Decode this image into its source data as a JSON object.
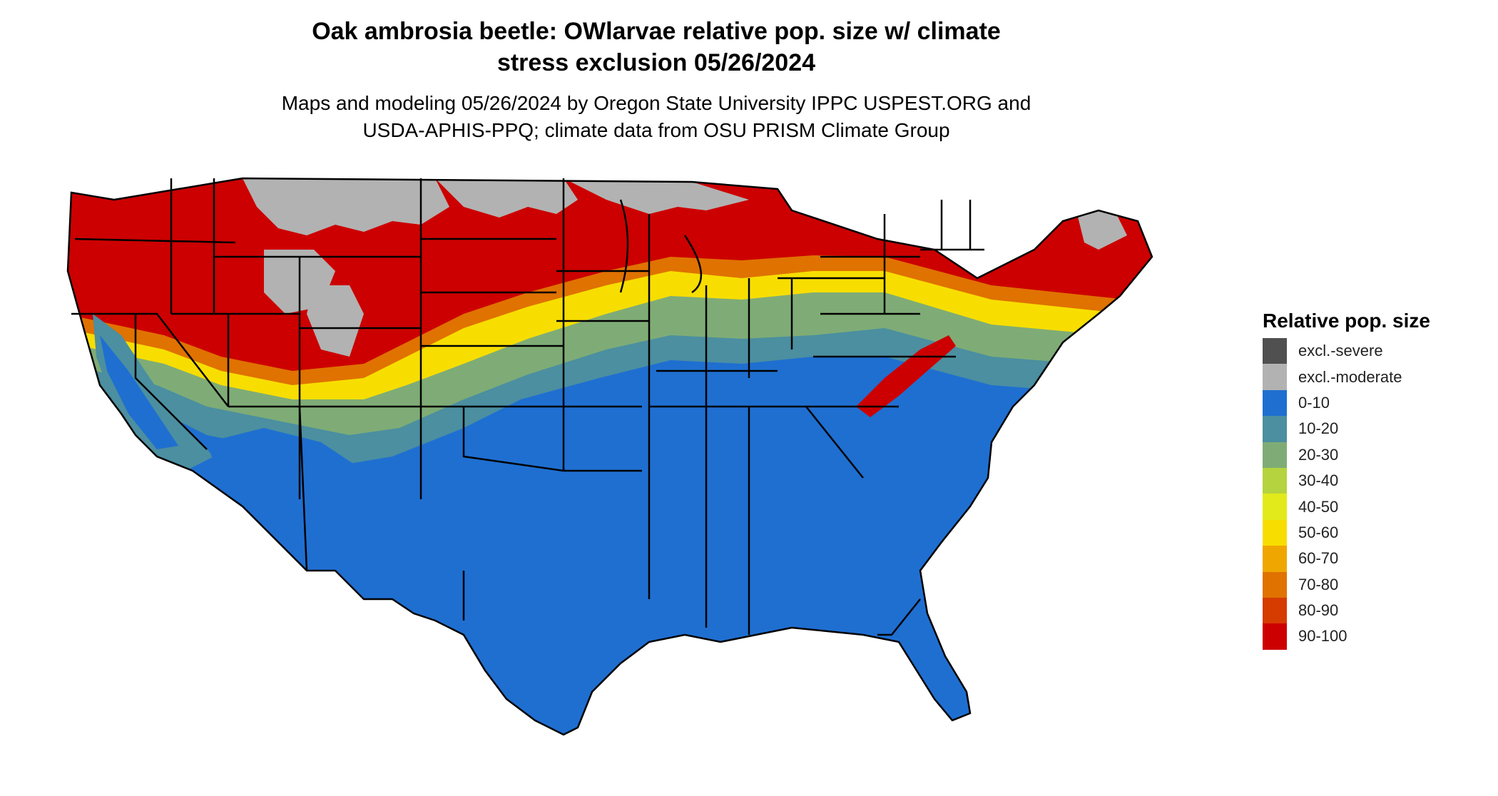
{
  "title_line1": "Oak ambrosia beetle: OWlarvae relative pop. size w/ climate",
  "title_line2": "stress exclusion 05/26/2024",
  "subtitle_line1": "Maps and modeling 05/26/2024 by Oregon State University IPPC USPEST.ORG and",
  "subtitle_line2": "USDA-APHIS-PPQ; climate data from OSU PRISM Climate Group",
  "legend": {
    "title": "Relative pop. size",
    "items": [
      {
        "label": "excl.-severe",
        "color": "#505050"
      },
      {
        "label": "excl.-moderate",
        "color": "#b2b2b2"
      },
      {
        "label": "0-10",
        "color": "#1f6fd1"
      },
      {
        "label": "10-20",
        "color": "#4b8fa0"
      },
      {
        "label": "20-30",
        "color": "#7fac76"
      },
      {
        "label": "30-40",
        "color": "#b5d33f"
      },
      {
        "label": "40-50",
        "color": "#e2ea1c"
      },
      {
        "label": "50-60",
        "color": "#f7de00"
      },
      {
        "label": "60-70",
        "color": "#f0a600"
      },
      {
        "label": "70-80",
        "color": "#e07200"
      },
      {
        "label": "80-90",
        "color": "#d63b00"
      },
      {
        "label": "90-100",
        "color": "#cc0000"
      }
    ]
  }
}
